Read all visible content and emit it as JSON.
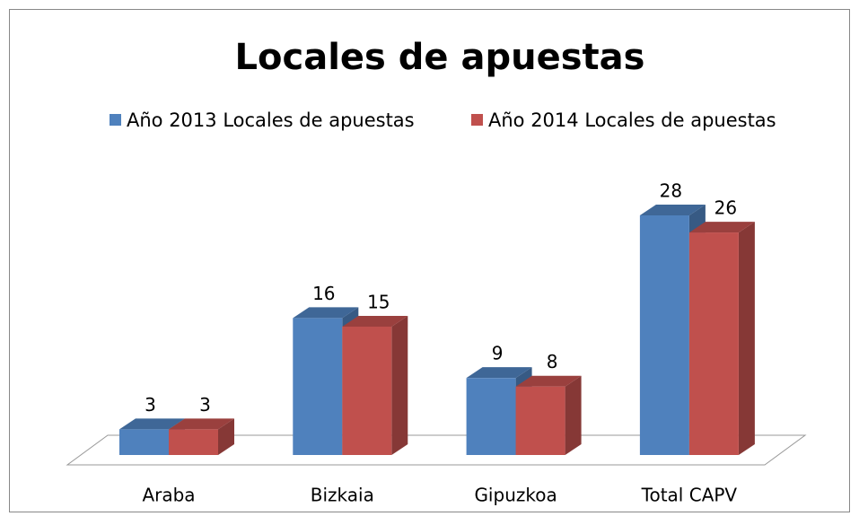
{
  "chart_data": {
    "type": "bar3d",
    "title": "Locales de apuestas",
    "categories": [
      "Araba",
      "Bizkaia",
      "Gipuzkoa",
      "Total CAPV"
    ],
    "series": [
      {
        "name": "Año 2013 Locales de apuestas",
        "color": "#4f81bd",
        "values": [
          3,
          16,
          9,
          28
        ]
      },
      {
        "name": "Año 2014 Locales de apuestas",
        "color": "#c0504d",
        "values": [
          3,
          15,
          8,
          26
        ]
      }
    ],
    "legend": "top"
  }
}
